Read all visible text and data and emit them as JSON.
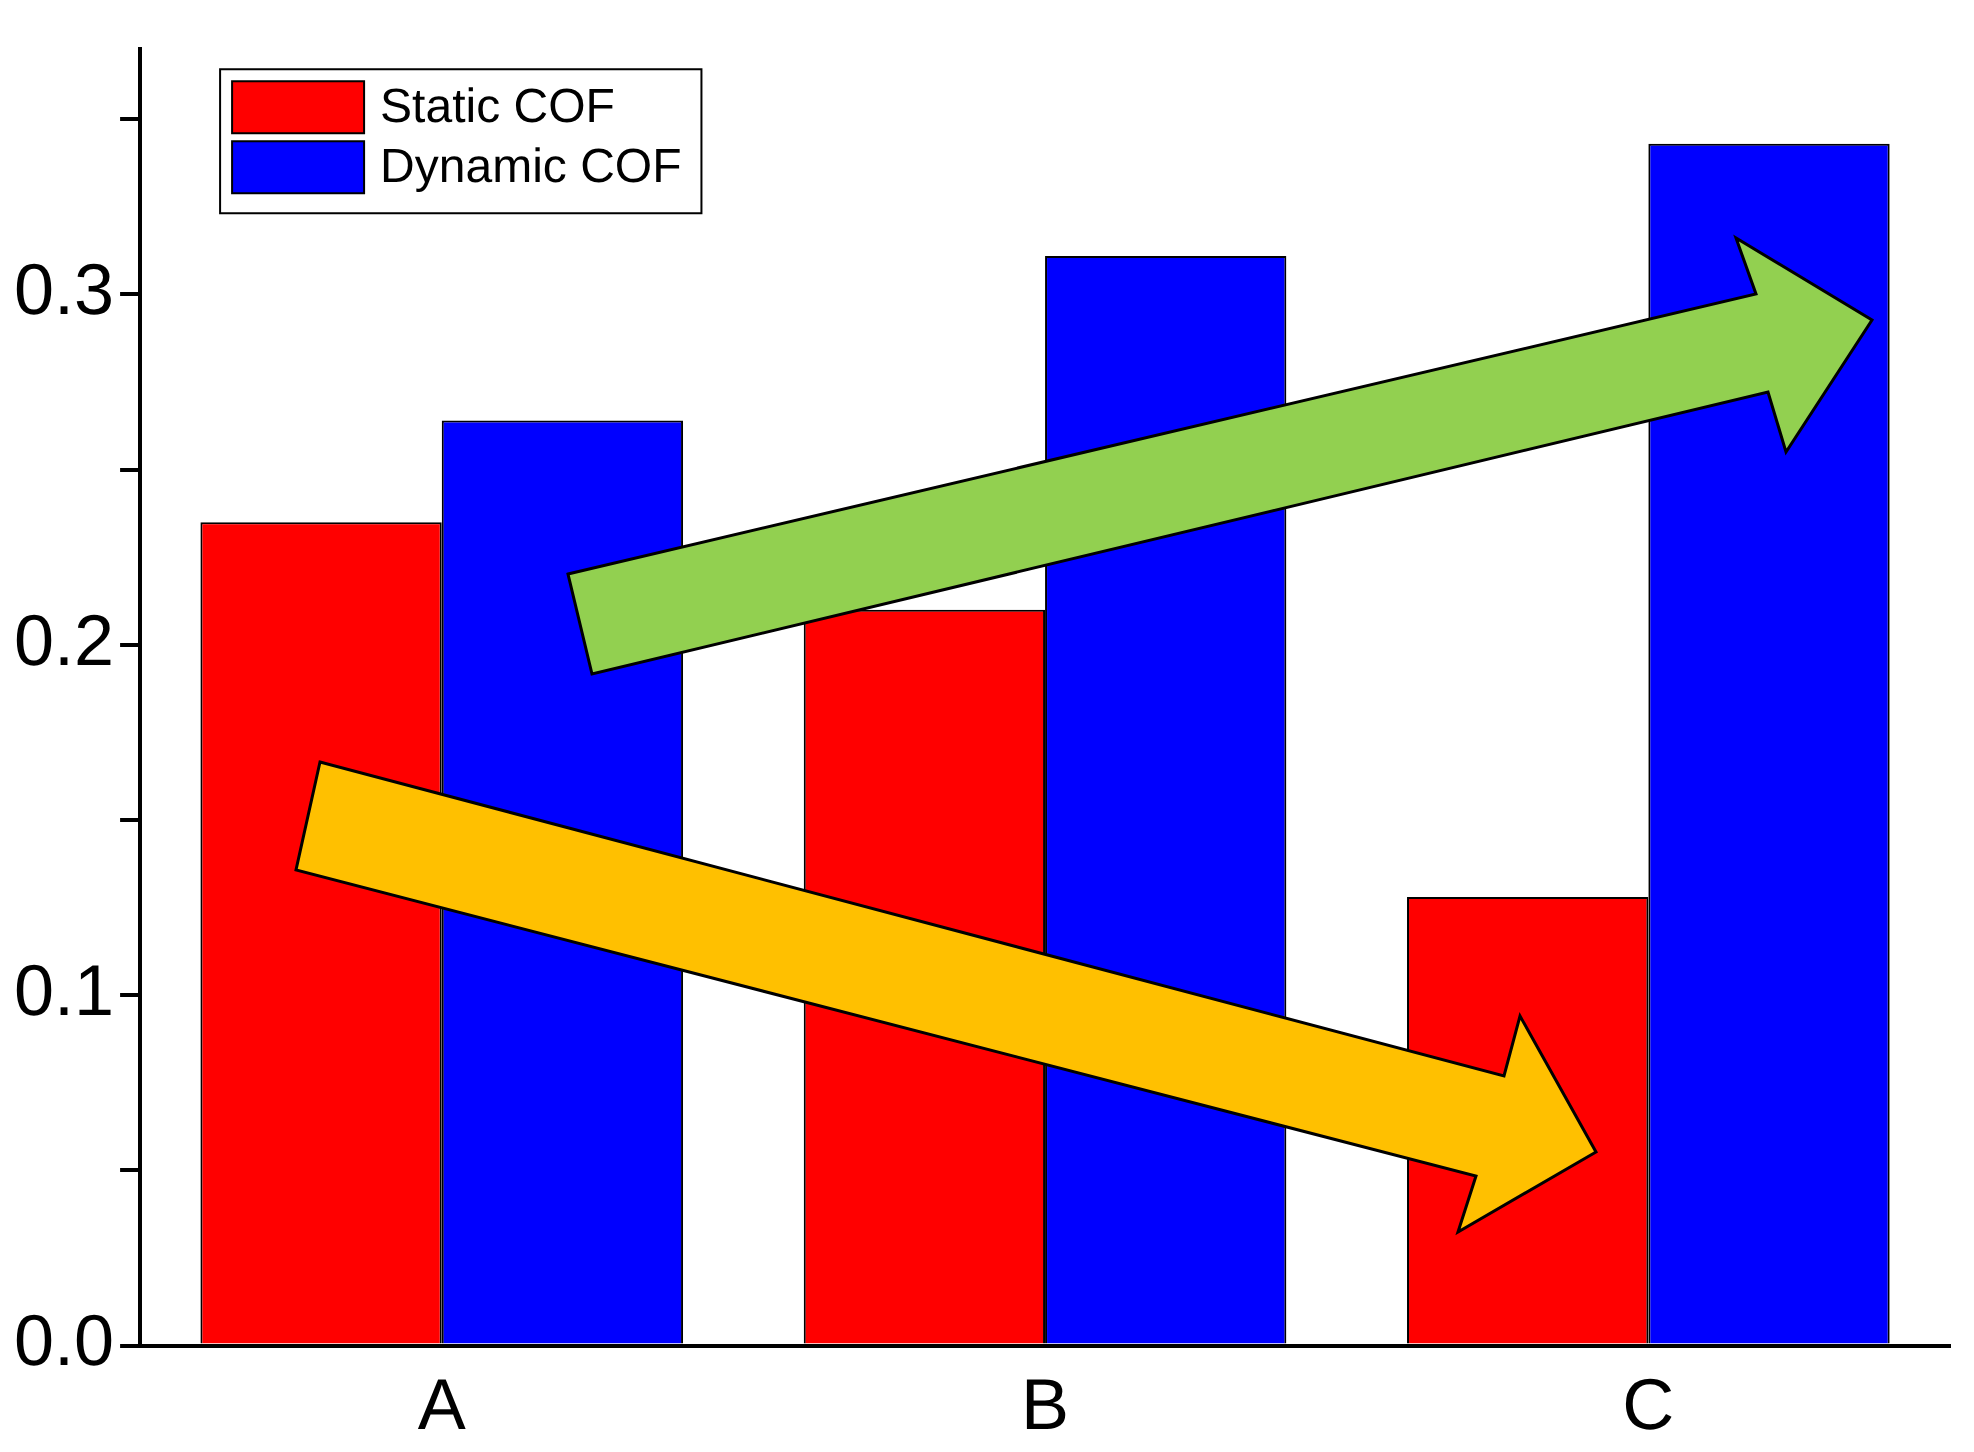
{
  "chart_data": {
    "type": "bar",
    "categories": [
      "A",
      "B",
      "C"
    ],
    "series": [
      {
        "name": "Static COF",
        "color": "#ff0000",
        "values": [
          0.235,
          0.21,
          0.128
        ]
      },
      {
        "name": "Dynamic COF",
        "color": "#0000ff",
        "values": [
          0.264,
          0.311,
          0.343
        ]
      }
    ],
    "ylim": [
      0,
      0.37
    ],
    "yticks": [
      {
        "value": 0,
        "label": "0.0"
      },
      {
        "value": 0.05,
        "label": null
      },
      {
        "value": 0.1,
        "label": "0.1"
      },
      {
        "value": 0.15,
        "label": null
      },
      {
        "value": 0.2,
        "label": "0.2"
      },
      {
        "value": 0.25,
        "label": null
      },
      {
        "value": 0.3,
        "label": "0.3"
      },
      {
        "value": 0.35,
        "label": null
      }
    ],
    "grid": false,
    "legend": "top left"
  }
}
